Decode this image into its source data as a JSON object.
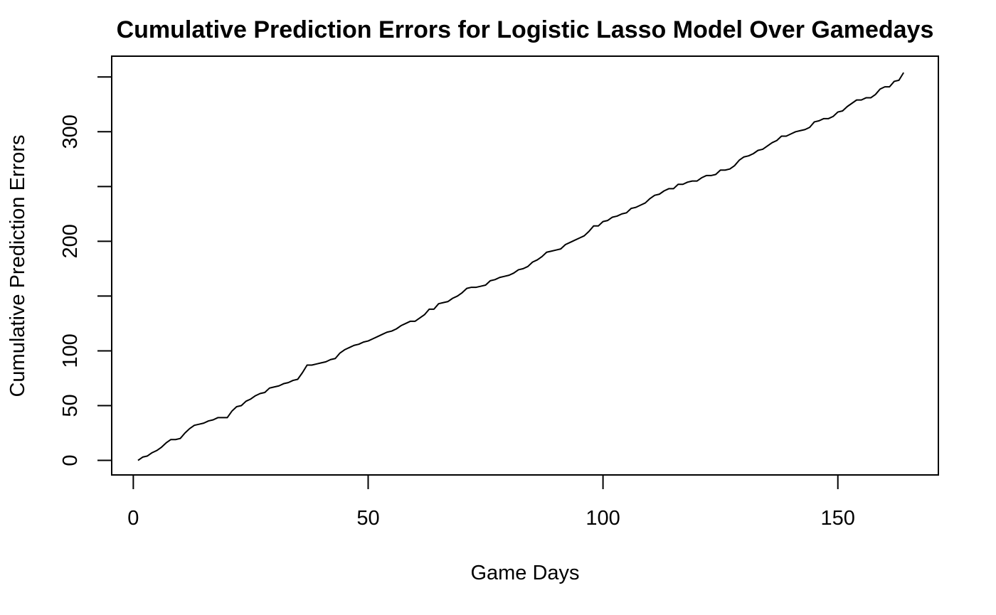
{
  "chart_data": {
    "type": "line",
    "title": "Cumulative Prediction Errors for Logistic Lasso Model Over Gamedays",
    "xlabel": "Game Days",
    "ylabel": "Cumulative Prediction Errors",
    "xlim": [
      -4.6,
      171.4
    ],
    "ylim": [
      -13.3,
      369
    ],
    "x_ticks": [
      0,
      50,
      100,
      150
    ],
    "x_tick_labels": [
      "0",
      "50",
      "100",
      "150"
    ],
    "y_ticks": [
      0,
      50,
      100,
      150,
      200,
      250,
      300,
      350
    ],
    "y_tick_labels": [
      "0",
      "50",
      "100",
      "",
      "200",
      "",
      "300",
      ""
    ],
    "grid": false,
    "legend": "none",
    "series": [
      {
        "points": [
          [
            1,
            0
          ],
          [
            2,
            3
          ],
          [
            3,
            4
          ],
          [
            4,
            7
          ],
          [
            5,
            9
          ],
          [
            6,
            12
          ],
          [
            7,
            16
          ],
          [
            8,
            19
          ],
          [
            9,
            19
          ],
          [
            10,
            20
          ],
          [
            11,
            25
          ],
          [
            12,
            29
          ],
          [
            13,
            32
          ],
          [
            14,
            33
          ],
          [
            15,
            34
          ],
          [
            16,
            36
          ],
          [
            17,
            37
          ],
          [
            18,
            39
          ],
          [
            19,
            39
          ],
          [
            20,
            39
          ],
          [
            21,
            45
          ],
          [
            22,
            49
          ],
          [
            23,
            50
          ],
          [
            24,
            54
          ],
          [
            25,
            56
          ],
          [
            26,
            59
          ],
          [
            27,
            61
          ],
          [
            28,
            62
          ],
          [
            29,
            66
          ],
          [
            30,
            67
          ],
          [
            31,
            68
          ],
          [
            32,
            70
          ],
          [
            33,
            71
          ],
          [
            34,
            73
          ],
          [
            35,
            74
          ],
          [
            36,
            80
          ],
          [
            37,
            87
          ],
          [
            38,
            87
          ],
          [
            39,
            88
          ],
          [
            40,
            89
          ],
          [
            41,
            90
          ],
          [
            42,
            92
          ],
          [
            43,
            93
          ],
          [
            44,
            98
          ],
          [
            45,
            101
          ],
          [
            46,
            103
          ],
          [
            47,
            105
          ],
          [
            48,
            106
          ],
          [
            49,
            108
          ],
          [
            50,
            109
          ],
          [
            51,
            111
          ],
          [
            52,
            113
          ],
          [
            53,
            115
          ],
          [
            54,
            117
          ],
          [
            55,
            118
          ],
          [
            56,
            120
          ],
          [
            57,
            123
          ],
          [
            58,
            125
          ],
          [
            59,
            127
          ],
          [
            60,
            127
          ],
          [
            61,
            130
          ],
          [
            62,
            133
          ],
          [
            63,
            138
          ],
          [
            64,
            138
          ],
          [
            65,
            143
          ],
          [
            66,
            144
          ],
          [
            67,
            145
          ],
          [
            68,
            148
          ],
          [
            69,
            150
          ],
          [
            70,
            153
          ],
          [
            71,
            157
          ],
          [
            72,
            158
          ],
          [
            73,
            158
          ],
          [
            74,
            159
          ],
          [
            75,
            160
          ],
          [
            76,
            164
          ],
          [
            77,
            165
          ],
          [
            78,
            167
          ],
          [
            79,
            168
          ],
          [
            80,
            169
          ],
          [
            81,
            171
          ],
          [
            82,
            174
          ],
          [
            83,
            175
          ],
          [
            84,
            177
          ],
          [
            85,
            181
          ],
          [
            86,
            183
          ],
          [
            87,
            186
          ],
          [
            88,
            190
          ],
          [
            89,
            191
          ],
          [
            90,
            192
          ],
          [
            91,
            193
          ],
          [
            92,
            197
          ],
          [
            93,
            199
          ],
          [
            94,
            201
          ],
          [
            95,
            203
          ],
          [
            96,
            205
          ],
          [
            97,
            209
          ],
          [
            98,
            214
          ],
          [
            99,
            214
          ],
          [
            100,
            218
          ],
          [
            101,
            219
          ],
          [
            102,
            222
          ],
          [
            103,
            223
          ],
          [
            104,
            225
          ],
          [
            105,
            226
          ],
          [
            106,
            230
          ],
          [
            107,
            231
          ],
          [
            108,
            233
          ],
          [
            109,
            235
          ],
          [
            110,
            239
          ],
          [
            111,
            242
          ],
          [
            112,
            243
          ],
          [
            113,
            246
          ],
          [
            114,
            248
          ],
          [
            115,
            248
          ],
          [
            116,
            252
          ],
          [
            117,
            252
          ],
          [
            118,
            254
          ],
          [
            119,
            255
          ],
          [
            120,
            255
          ],
          [
            121,
            258
          ],
          [
            122,
            260
          ],
          [
            123,
            260
          ],
          [
            124,
            261
          ],
          [
            125,
            265
          ],
          [
            126,
            265
          ],
          [
            127,
            266
          ],
          [
            128,
            269
          ],
          [
            129,
            274
          ],
          [
            130,
            277
          ],
          [
            131,
            278
          ],
          [
            132,
            280
          ],
          [
            133,
            283
          ],
          [
            134,
            284
          ],
          [
            135,
            287
          ],
          [
            136,
            290
          ],
          [
            137,
            292
          ],
          [
            138,
            296
          ],
          [
            139,
            296
          ],
          [
            140,
            298
          ],
          [
            141,
            300
          ],
          [
            142,
            301
          ],
          [
            143,
            302
          ],
          [
            144,
            304
          ],
          [
            145,
            309
          ],
          [
            146,
            310
          ],
          [
            147,
            312
          ],
          [
            148,
            312
          ],
          [
            149,
            314
          ],
          [
            150,
            318
          ],
          [
            151,
            319
          ],
          [
            152,
            323
          ],
          [
            153,
            326
          ],
          [
            154,
            329
          ],
          [
            155,
            329
          ],
          [
            156,
            331
          ],
          [
            157,
            331
          ],
          [
            158,
            334
          ],
          [
            159,
            339
          ],
          [
            160,
            341
          ],
          [
            161,
            341
          ],
          [
            162,
            346
          ],
          [
            163,
            347
          ],
          [
            164,
            354
          ]
        ]
      }
    ]
  }
}
